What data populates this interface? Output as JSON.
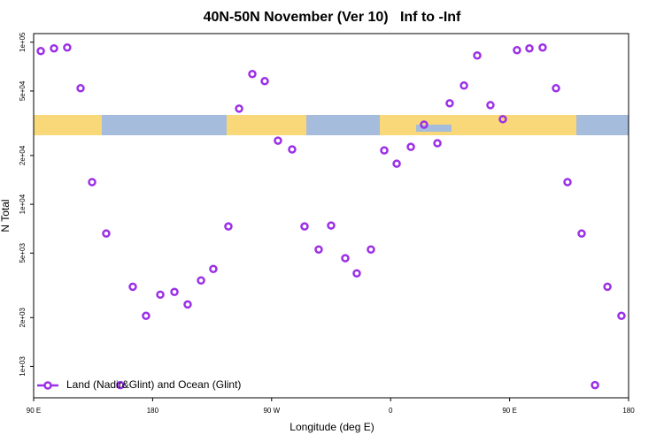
{
  "chart_data": {
    "type": "scatter",
    "title": "40N-50N November (Ver 10)   Inf to -Inf",
    "x_label": "Longitude (deg E)",
    "y_label": "N Total",
    "log_y": true,
    "legend": "lower left",
    "xlim": [
      90,
      540
    ],
    "xticks": [
      {
        "value": 90,
        "label": "90 E"
      },
      {
        "value": 180,
        "label": "180"
      },
      {
        "value": 270,
        "label": "90 W"
      },
      {
        "value": 360,
        "label": "0"
      },
      {
        "value": 450,
        "label": "90 E"
      },
      {
        "value": 540,
        "label": "180"
      }
    ],
    "ylim": [
      640,
      113000
    ],
    "yticks": [
      {
        "value": 1000,
        "label": "1e+03"
      },
      {
        "value": 2000,
        "label": "2e+03"
      },
      {
        "value": 5000,
        "label": "5e+03"
      },
      {
        "value": 10000,
        "label": "1e+04"
      },
      {
        "value": 20000,
        "label": "2e+04"
      },
      {
        "value": 50000,
        "label": "5e+04"
      },
      {
        "value": 100000,
        "label": "1e+05"
      }
    ],
    "series": [
      {
        "name": "Land (Nadir&Glint) and Ocean (Glint)",
        "color": "#9b30e8",
        "x": [
          95.4,
          105.4,
          115.4,
          125.5,
          134.2,
          144.9,
          155.6,
          165,
          175,
          185.8,
          196.5,
          206.5,
          216.6,
          225.9,
          237.3,
          245.4,
          255.4,
          264.8,
          274.8,
          285.5,
          294.9,
          305.6,
          315,
          325.7,
          334.4,
          345.1,
          355.2,
          364.6,
          375.3,
          385.3,
          395.4,
          404.7,
          415.5,
          425.5,
          435.5,
          444.9,
          455.6,
          465,
          475,
          485.1,
          493.8,
          504.5,
          514.6,
          524,
          534.6
        ],
        "values": [
          88200,
          91600,
          92700,
          52000,
          13700,
          6600,
          767,
          3100,
          2050,
          2770,
          2880,
          2410,
          3390,
          3990,
          7300,
          38900,
          63600,
          57500,
          24700,
          21800,
          7300,
          5260,
          7400,
          4650,
          3750,
          5260,
          21500,
          17800,
          22600,
          31000,
          23800,
          42000,
          54000,
          82800,
          40900,
          33500,
          89300,
          91600,
          92700,
          52000,
          13700,
          6600,
          767,
          3100,
          2050
        ]
      }
    ]
  }
}
